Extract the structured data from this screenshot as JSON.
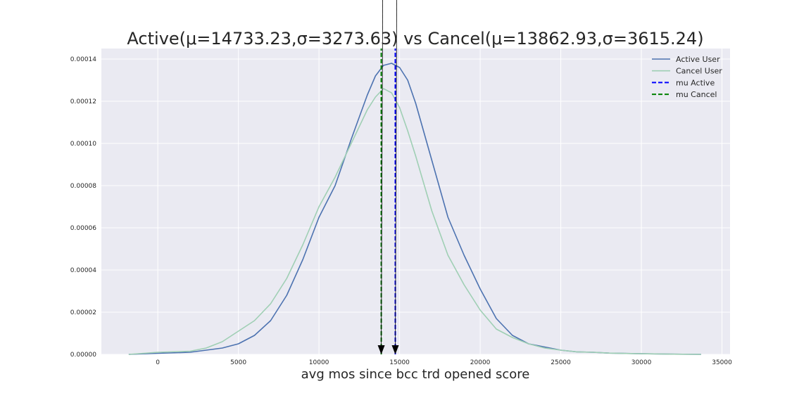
{
  "chart_data": {
    "type": "line",
    "title": "Active(μ=14733.23,σ=3273.63) vs Cancel(μ=13862.93,σ=3615.24)",
    "xlabel": "avg mos since bcc trd opened score",
    "ylabel": "",
    "xlim": [
      -3500,
      35500
    ],
    "ylim": [
      0,
      0.000145
    ],
    "xticks": [
      0,
      5000,
      10000,
      15000,
      20000,
      25000,
      30000,
      35000
    ],
    "xtick_labels": [
      "0",
      "5000",
      "10000",
      "15000",
      "20000",
      "25000",
      "30000",
      "35000"
    ],
    "yticks": [
      0,
      2e-05,
      4e-05,
      6e-05,
      8e-05,
      0.0001,
      0.00012,
      0.00014
    ],
    "ytick_labels": [
      "0.00000",
      "0.00002",
      "0.00004",
      "0.00006",
      "0.00008",
      "0.00010",
      "0.00012",
      "0.00014"
    ],
    "grid": true,
    "legend_position": "top-right",
    "series": [
      {
        "name": "Active User",
        "color": "#4c72b0",
        "style": "solid",
        "x": [
          -1800,
          0,
          2000,
          4000,
          5000,
          6000,
          7000,
          8000,
          9000,
          10000,
          11000,
          12000,
          13000,
          13500,
          14000,
          14500,
          15000,
          15500,
          16000,
          17000,
          18000,
          19000,
          20000,
          21000,
          22000,
          23000,
          24000,
          25000,
          26000,
          27000,
          28000,
          30000,
          32000,
          33700
        ],
        "y": [
          0,
          5e-07,
          1e-06,
          3e-06,
          5e-06,
          9e-06,
          1.6e-05,
          2.8e-05,
          4.5e-05,
          6.5e-05,
          8e-05,
          0.000102,
          0.000123,
          0.000132,
          0.000137,
          0.000138,
          0.000136,
          0.00013,
          0.000119,
          9.2e-05,
          6.5e-05,
          4.7e-05,
          3.1e-05,
          1.7e-05,
          9e-06,
          5e-06,
          3.5e-06,
          2e-06,
          1.2e-06,
          1e-06,
          6e-07,
          3e-07,
          1e-07,
          0
        ]
      },
      {
        "name": "Cancel User",
        "color": "#9fcfb4",
        "style": "solid",
        "x": [
          -1800,
          0,
          2000,
          3000,
          4000,
          5000,
          6000,
          7000,
          8000,
          9000,
          10000,
          11000,
          12000,
          13000,
          13500,
          14000,
          14500,
          15000,
          15500,
          16000,
          17000,
          18000,
          19000,
          20000,
          21000,
          22000,
          23000,
          24000,
          25000,
          26000,
          27000,
          28000,
          30000,
          32000,
          33700
        ],
        "y": [
          0,
          1e-06,
          1.5e-06,
          3e-06,
          6e-06,
          1.1e-05,
          1.6e-05,
          2.4e-05,
          3.6e-05,
          5.2e-05,
          7e-05,
          8.4e-05,
          0.0001,
          0.000116,
          0.000122,
          0.000126,
          0.000124,
          0.000117,
          0.000106,
          9.4e-05,
          6.8e-05,
          4.7e-05,
          3.3e-05,
          2.1e-05,
          1.2e-05,
          8e-06,
          5e-06,
          3e-06,
          2e-06,
          1.2e-06,
          1e-06,
          6e-07,
          3e-07,
          1e-07,
          0
        ]
      },
      {
        "name": "mu Active",
        "color": "#0000ff",
        "style": "dashed",
        "x": [
          14733.23,
          14733.23
        ],
        "y": [
          0,
          0.000145
        ]
      },
      {
        "name": "mu Cancel",
        "color": "#008000",
        "style": "dashed",
        "x": [
          13862.93,
          13862.93
        ],
        "y": [
          0,
          0.000145
        ]
      }
    ],
    "annotations": [
      {
        "type": "arrow",
        "x": 13862.93,
        "y": 0
      },
      {
        "type": "arrow",
        "x": 14733.23,
        "y": 0
      }
    ]
  }
}
